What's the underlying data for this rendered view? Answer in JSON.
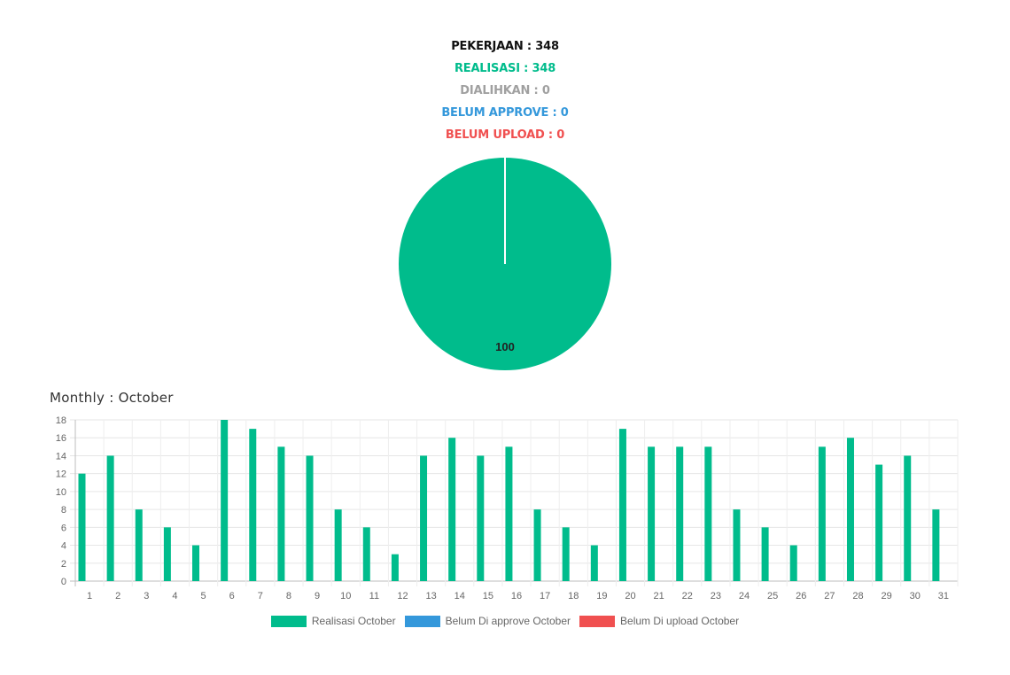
{
  "summary": {
    "pekerjaan": {
      "text": "PEKERJAAN : 348",
      "color": "#111111"
    },
    "realisasi": {
      "text": "REALISASI : 348",
      "color": "#00BC8C"
    },
    "dialihkan": {
      "text": "DIALIHKAN : 0",
      "color": "#A0A0A0"
    },
    "belum_approve": {
      "text": "BELUM APPROVE : 0",
      "color": "#3498DB"
    },
    "belum_upload": {
      "text": "BELUM UPLOAD : 0",
      "color": "#F05050"
    }
  },
  "monthly_title": "Monthly : October",
  "chart_data": [
    {
      "type": "pie",
      "slices": [
        {
          "value": 100,
          "label": "100",
          "color": "#00BC8C"
        },
        {
          "value": 0,
          "color": "#A0A0A0"
        },
        {
          "value": 0,
          "color": "#3498DB"
        },
        {
          "value": 0,
          "color": "#F05050"
        }
      ]
    },
    {
      "type": "bar",
      "title": "Monthly : October",
      "categories": [
        "1",
        "2",
        "3",
        "4",
        "5",
        "6",
        "7",
        "8",
        "9",
        "10",
        "11",
        "12",
        "13",
        "14",
        "15",
        "16",
        "17",
        "18",
        "19",
        "20",
        "21",
        "22",
        "23",
        "24",
        "25",
        "26",
        "27",
        "28",
        "29",
        "30",
        "31"
      ],
      "series": [
        {
          "name": "Realisasi October",
          "color": "#00BC8C",
          "values": [
            12,
            14,
            8,
            6,
            4,
            18,
            17,
            15,
            14,
            8,
            6,
            3,
            14,
            16,
            14,
            15,
            8,
            6,
            4,
            17,
            15,
            15,
            15,
            8,
            6,
            4,
            15,
            16,
            13,
            14,
            8
          ]
        },
        {
          "name": "Belum Di approve October",
          "color": "#3498DB",
          "values": [
            0,
            0,
            0,
            0,
            0,
            0,
            0,
            0,
            0,
            0,
            0,
            0,
            0,
            0,
            0,
            0,
            0,
            0,
            0,
            0,
            0,
            0,
            0,
            0,
            0,
            0,
            0,
            0,
            0,
            0,
            0
          ]
        },
        {
          "name": "Belum Di upload October",
          "color": "#F05050",
          "values": [
            0,
            0,
            0,
            0,
            0,
            0,
            0,
            0,
            0,
            0,
            0,
            0,
            0,
            0,
            0,
            0,
            0,
            0,
            0,
            0,
            0,
            0,
            0,
            0,
            0,
            0,
            0,
            0,
            0,
            0,
            0
          ]
        }
      ],
      "ylim": [
        0,
        18
      ],
      "yticks": [
        0,
        2,
        4,
        6,
        8,
        10,
        12,
        14,
        16,
        18
      ],
      "grid": true,
      "legend": "bottom"
    }
  ]
}
